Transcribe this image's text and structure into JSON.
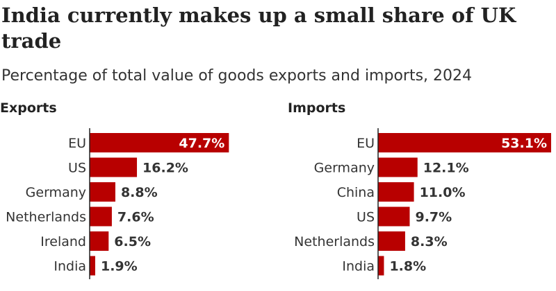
{
  "title": "India currently makes up a small share of UK trade",
  "subtitle": "Percentage of total value of goods exports and imports, 2024",
  "colors": {
    "bar": "#b80000",
    "axis": "#222222",
    "label_inside": "#ffffff",
    "label_outside": "#333333"
  },
  "chart_data": [
    {
      "type": "bar",
      "orientation": "horizontal",
      "title": "Exports",
      "categories": [
        "EU",
        "US",
        "Germany",
        "Netherlands",
        "Ireland",
        "India"
      ],
      "values": [
        47.7,
        16.2,
        8.8,
        7.6,
        6.5,
        1.9
      ],
      "data_labels": [
        "47.7%",
        "16.2%",
        "8.8%",
        "7.6%",
        "6.5%",
        "1.9%"
      ],
      "xlim": [
        0,
        53.1
      ],
      "grid": false
    },
    {
      "type": "bar",
      "orientation": "horizontal",
      "title": "Imports",
      "categories": [
        "EU",
        "Germany",
        "China",
        "US",
        "Netherlands",
        "India"
      ],
      "values": [
        53.1,
        12.1,
        11.0,
        9.7,
        8.3,
        1.8
      ],
      "data_labels": [
        "53.1%",
        "12.1%",
        "11.0%",
        "9.7%",
        "8.3%",
        "1.8%"
      ],
      "xlim": [
        0,
        53.1
      ],
      "grid": false
    }
  ]
}
